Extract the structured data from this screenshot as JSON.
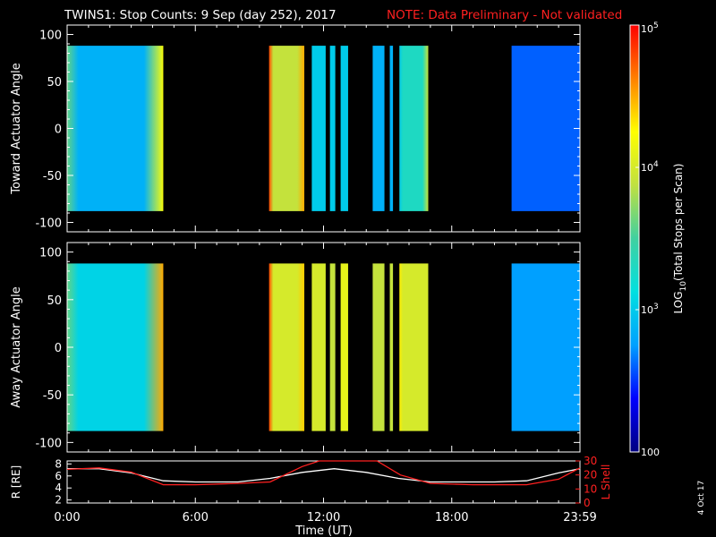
{
  "header": {
    "title": "TWINS1: Stop Counts:  9 Sep (day 252), 2017",
    "note": "NOTE: Data Preliminary - Not validated",
    "note_color": "#ff2020"
  },
  "side_date": "4 Oct 17",
  "colorbar": {
    "label": "LOG10(Total Stops per Scan)",
    "scale": "log",
    "range": [
      100,
      100000
    ],
    "ticks": [
      "10^5",
      "10^4",
      "10^3",
      "100"
    ],
    "colormap": [
      "#000080",
      "#0000ff",
      "#00a0ff",
      "#00e0e0",
      "#40d0a0",
      "#c0e040",
      "#ffff00",
      "#ff8000",
      "#ff0000"
    ]
  },
  "panels": [
    {
      "ylabel": "Toward Actuator Angle"
    },
    {
      "ylabel": "Away Actuator Angle"
    }
  ],
  "orbit_panel": {
    "left_label": "R [RE]",
    "right_label": "L Shell",
    "right_label_color": "#ff2020"
  },
  "xaxis": {
    "label": "Time (UT)",
    "ticks": [
      "0:00",
      "6:00",
      "12:00",
      "18:00",
      "23:59"
    ]
  },
  "chart_data": [
    {
      "type": "heatmap",
      "title": "TWINS1: Stop Counts:  9 Sep (day 252), 2017",
      "xlabel": "Time (UT)",
      "ylabel": "Toward Actuator Angle",
      "xlim": [
        0,
        24
      ],
      "ylim": [
        -110,
        110
      ],
      "yticks": [
        100,
        50,
        0,
        -50,
        -100
      ],
      "data_angle_range": [
        -88,
        88
      ],
      "color_scale": "log",
      "color_range": [
        100,
        100000
      ],
      "segments": [
        {
          "t_start": 0.0,
          "t_end": 4.5,
          "level": 2.85,
          "edge_levels": [
            3.6,
            4.2
          ]
        },
        {
          "t_start": 9.45,
          "t_end": 11.1,
          "level": 3.9,
          "edge_levels": [
            4.8,
            4.5
          ]
        },
        {
          "t_start": 11.45,
          "t_end": 12.1,
          "level": 3.0
        },
        {
          "t_start": 12.3,
          "t_end": 12.55,
          "level": 3.0
        },
        {
          "t_start": 12.8,
          "t_end": 13.15,
          "level": 3.0
        },
        {
          "t_start": 14.3,
          "t_end": 14.85,
          "level": 2.85
        },
        {
          "t_start": 15.1,
          "t_end": 15.25,
          "level": 2.85
        },
        {
          "t_start": 15.55,
          "t_end": 16.9,
          "level": 3.3,
          "edge_levels": [
            3.0,
            3.9
          ]
        },
        {
          "t_start": 20.8,
          "t_end": 24.0,
          "level": 2.6
        }
      ]
    },
    {
      "type": "heatmap",
      "xlabel": "Time (UT)",
      "ylabel": "Away Actuator Angle",
      "xlim": [
        0,
        24
      ],
      "ylim": [
        -110,
        110
      ],
      "yticks": [
        100,
        50,
        0,
        -50,
        -100
      ],
      "data_angle_range": [
        -88,
        88
      ],
      "color_scale": "log",
      "color_range": [
        100,
        100000
      ],
      "segments": [
        {
          "t_start": 0.0,
          "t_end": 4.5,
          "level": 3.05,
          "edge_levels": [
            3.6,
            4.5
          ]
        },
        {
          "t_start": 9.45,
          "t_end": 11.1,
          "level": 4.0,
          "edge_levels": [
            4.8,
            4.4
          ]
        },
        {
          "t_start": 11.45,
          "t_end": 12.1,
          "level": 4.0
        },
        {
          "t_start": 12.3,
          "t_end": 12.55,
          "level": 3.9
        },
        {
          "t_start": 12.8,
          "t_end": 13.15,
          "level": 4.1
        },
        {
          "t_start": 14.3,
          "t_end": 14.85,
          "level": 3.9
        },
        {
          "t_start": 15.1,
          "t_end": 15.25,
          "level": 3.9
        },
        {
          "t_start": 15.55,
          "t_end": 16.9,
          "level": 4.0,
          "edge_levels": [
            4.3,
            4.0
          ]
        },
        {
          "t_start": 20.8,
          "t_end": 24.0,
          "level": 2.75
        }
      ]
    },
    {
      "type": "line",
      "xlabel": "Time (UT)",
      "xlim": [
        0,
        24
      ],
      "y_left": {
        "label": "R [RE]",
        "lim": [
          1.5,
          8.5
        ],
        "ticks": [
          8,
          6,
          4,
          2
        ]
      },
      "y_right": {
        "label": "L Shell",
        "lim": [
          0,
          30
        ],
        "ticks": [
          30,
          20,
          10,
          0
        ]
      },
      "series": [
        {
          "axis": "left",
          "color": "#ffffff",
          "x": [
            0,
            1.5,
            3.0,
            4.5,
            6.0,
            8.0,
            9.5,
            11.0,
            12.5,
            14.0,
            15.5,
            17.0,
            18.5,
            20.0,
            21.5,
            23.0,
            24.0
          ],
          "y": [
            7.2,
            7.2,
            6.5,
            5.2,
            5.0,
            5.0,
            5.6,
            6.6,
            7.2,
            6.6,
            5.6,
            5.0,
            5.0,
            5.0,
            5.2,
            6.5,
            7.2
          ]
        },
        {
          "axis": "right",
          "color": "#ff2020",
          "x": [
            0,
            1.5,
            3.0,
            4.5,
            6.0,
            8.0,
            9.5,
            11.0,
            11.8,
            14.5,
            15.6,
            17.0,
            19.0,
            21.5,
            23.0,
            24.0
          ],
          "y": [
            24,
            25,
            22,
            13,
            13,
            14,
            15,
            26,
            30,
            30,
            20,
            14,
            13,
            13,
            17,
            25
          ]
        }
      ]
    }
  ]
}
